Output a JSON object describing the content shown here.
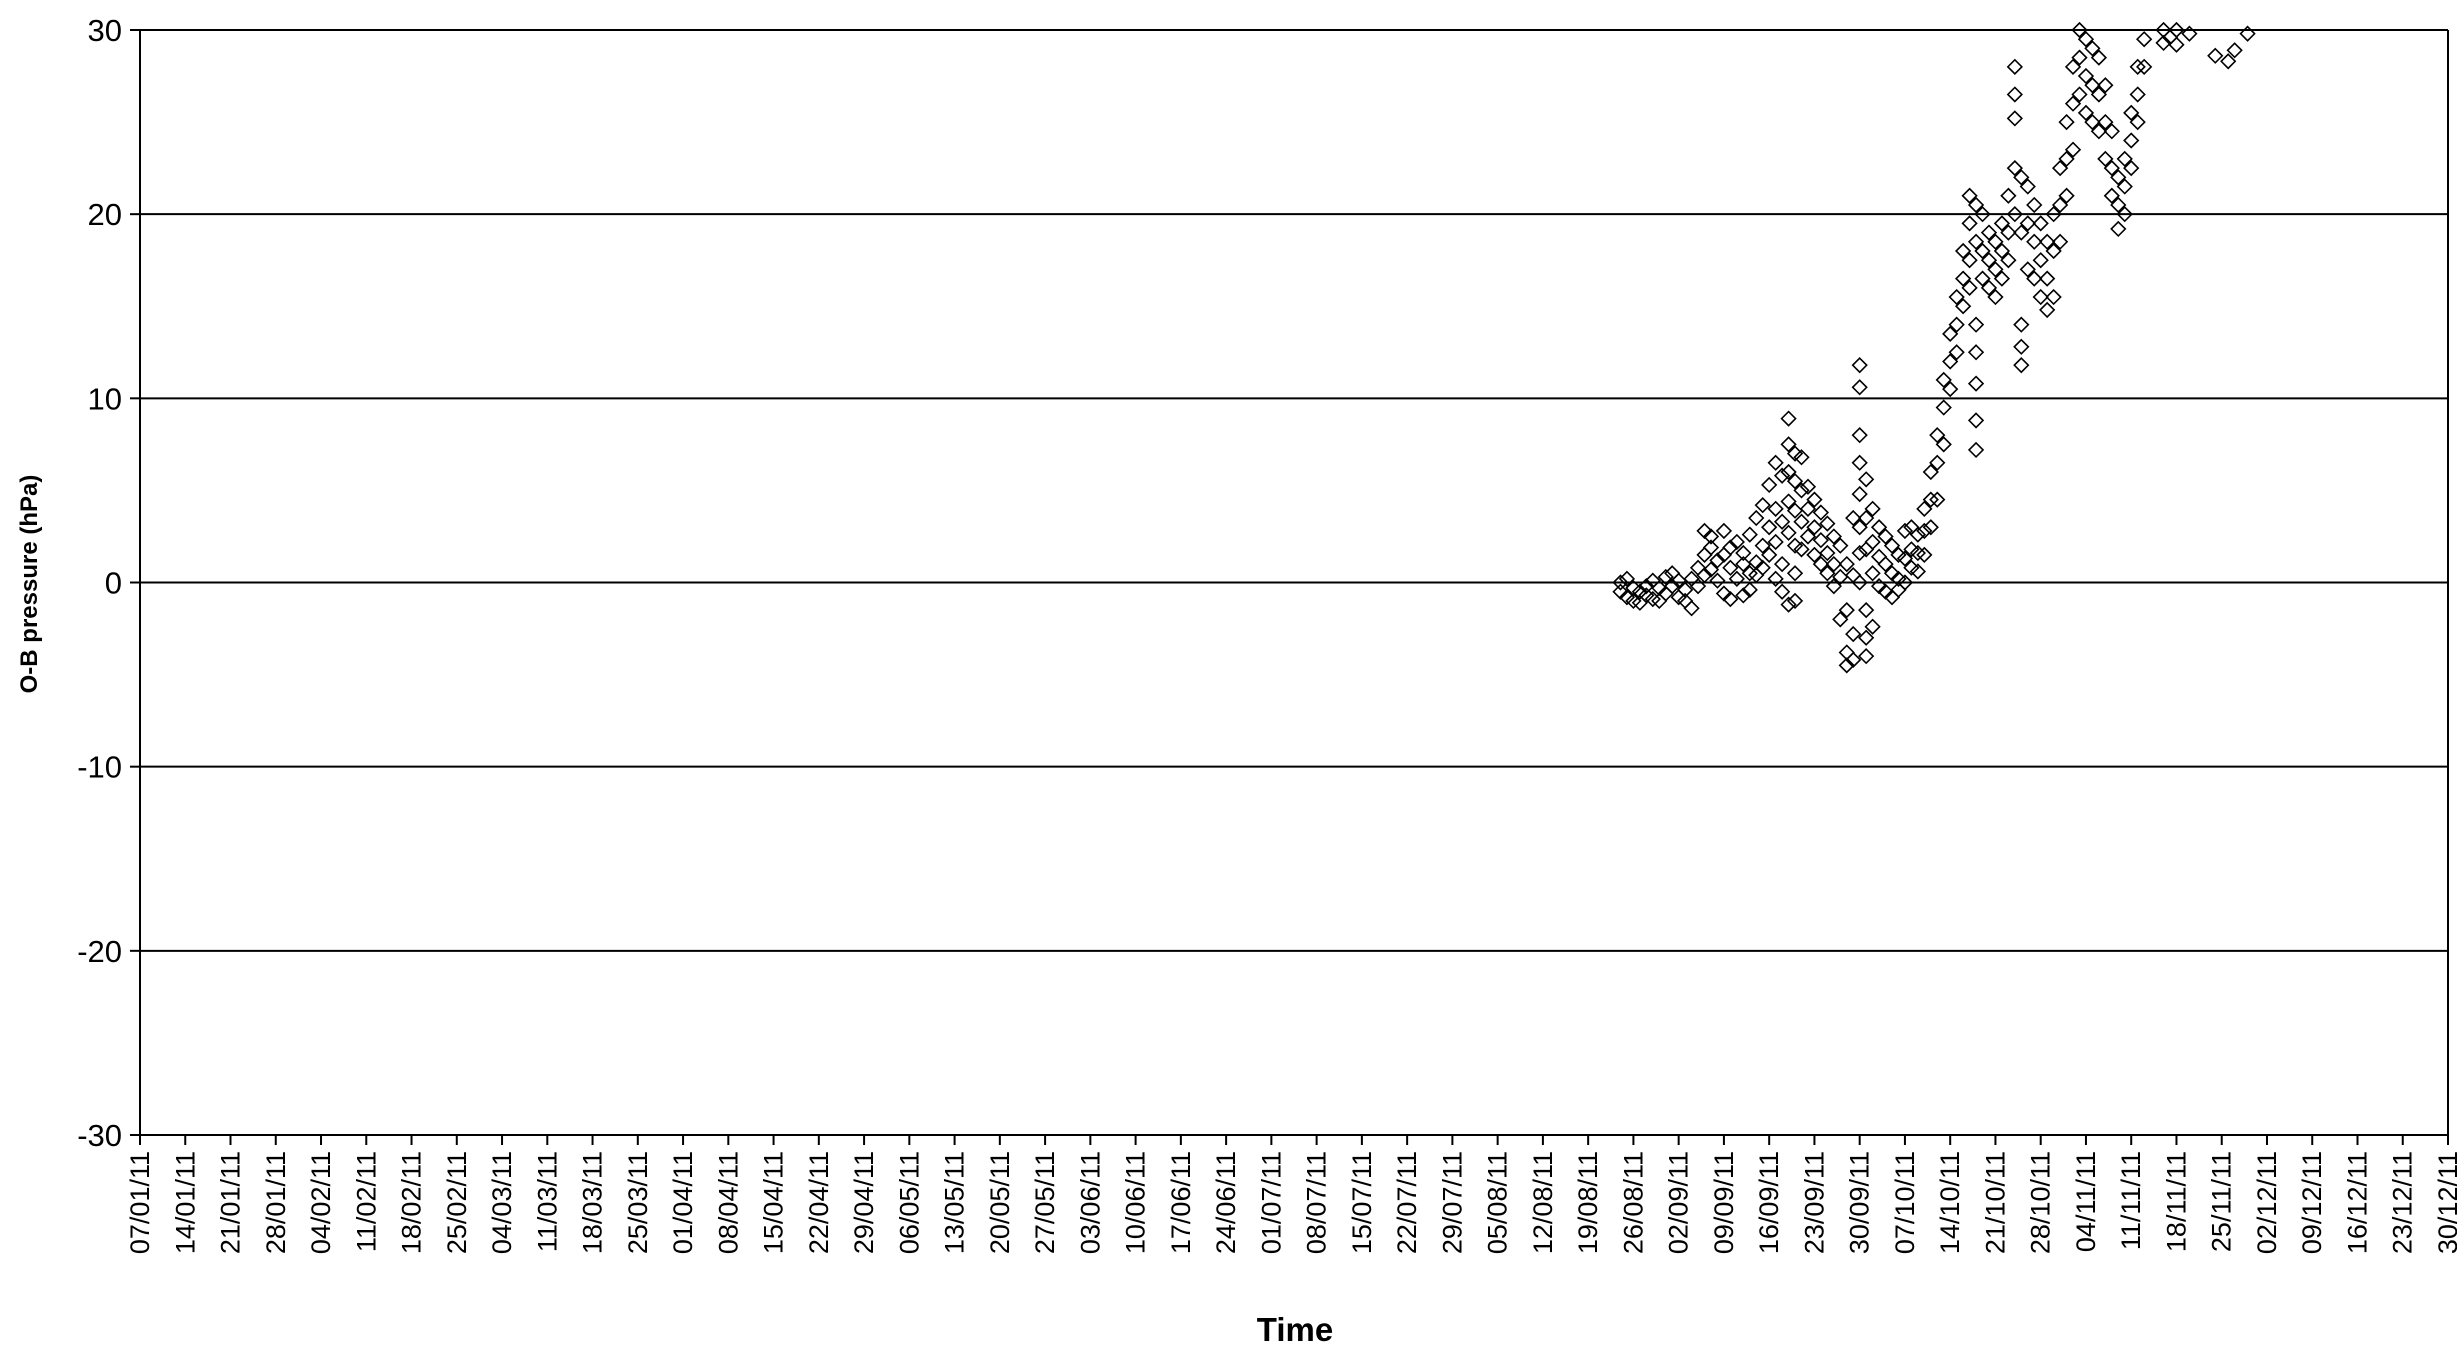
{
  "chart_data": {
    "type": "scatter",
    "title": "",
    "xlabel": "Time",
    "ylabel": "O-B pressure (hPa)",
    "ylim": [
      -30,
      30
    ],
    "yticks": [
      30,
      20,
      10,
      0,
      -10,
      -20,
      -30
    ],
    "xlim": [
      "07/01/11",
      "30/12/11"
    ],
    "xtick_labels": [
      "07/01/11",
      "14/01/11",
      "21/01/11",
      "28/01/11",
      "04/02/11",
      "11/02/11",
      "18/02/11",
      "25/02/11",
      "04/03/11",
      "11/03/11",
      "18/03/11",
      "25/03/11",
      "01/04/11",
      "08/04/11",
      "15/04/11",
      "22/04/11",
      "29/04/11",
      "06/05/11",
      "13/05/11",
      "20/05/11",
      "27/05/11",
      "03/06/11",
      "10/06/11",
      "17/06/11",
      "24/06/11",
      "01/07/11",
      "08/07/11",
      "15/07/11",
      "22/07/11",
      "29/07/11",
      "05/08/11",
      "12/08/11",
      "19/08/11",
      "26/08/11",
      "02/09/11",
      "09/09/11",
      "16/09/11",
      "23/09/11",
      "30/09/11",
      "07/10/11",
      "14/10/11",
      "21/10/11",
      "28/10/11",
      "04/11/11",
      "11/11/11",
      "18/11/11",
      "25/11/11",
      "02/12/11",
      "09/12/11",
      "16/12/11",
      "23/12/11",
      "30/12/11"
    ],
    "grid": "horizontal",
    "legend": "none",
    "marker": "diamond-open",
    "marker_color": "#000000",
    "series": [
      {
        "points": [
          [
            "24/08/11",
            0
          ],
          [
            "24/08/11",
            -0.5
          ],
          [
            "25/08/11",
            -0.8
          ],
          [
            "25/08/11",
            0.2
          ],
          [
            "26/08/11",
            -1.0
          ],
          [
            "26/08/11",
            -0.3
          ],
          [
            "27/08/11",
            -0.5
          ],
          [
            "27/08/11",
            -1.1
          ],
          [
            "28/08/11",
            -0.2
          ],
          [
            "28/08/11",
            -0.7
          ],
          [
            "29/08/11",
            0.1
          ],
          [
            "29/08/11",
            -0.9
          ],
          [
            "30/08/11",
            -0.3
          ],
          [
            "30/08/11",
            -1.0
          ],
          [
            "31/08/11",
            0.3
          ],
          [
            "31/08/11",
            -0.6
          ],
          [
            "01/09/11",
            0.5
          ],
          [
            "01/09/11",
            -0.2
          ],
          [
            "02/09/11",
            0.1
          ],
          [
            "02/09/11",
            -0.8
          ],
          [
            "03/09/11",
            -1.0
          ],
          [
            "03/09/11",
            -0.4
          ],
          [
            "04/09/11",
            -1.4
          ],
          [
            "04/09/11",
            0.2
          ],
          [
            "05/09/11",
            0.8
          ],
          [
            "05/09/11",
            -0.2
          ],
          [
            "06/09/11",
            1.5
          ],
          [
            "06/09/11",
            2.8
          ],
          [
            "06/09/11",
            0.4
          ],
          [
            "07/09/11",
            1.9
          ],
          [
            "07/09/11",
            0.7
          ],
          [
            "07/09/11",
            2.5
          ],
          [
            "08/09/11",
            1.2
          ],
          [
            "08/09/11",
            0.1
          ],
          [
            "09/09/11",
            2.8
          ],
          [
            "09/09/11",
            1.5
          ],
          [
            "09/09/11",
            -0.6
          ],
          [
            "10/09/11",
            0.8
          ],
          [
            "10/09/11",
            -0.9
          ],
          [
            "10/09/11",
            1.9
          ],
          [
            "11/09/11",
            2.2
          ],
          [
            "11/09/11",
            0.2
          ],
          [
            "12/09/11",
            1.0
          ],
          [
            "12/09/11",
            -0.7
          ],
          [
            "12/09/11",
            1.6
          ],
          [
            "13/09/11",
            0.5
          ],
          [
            "13/09/11",
            -0.4
          ],
          [
            "13/09/11",
            2.6
          ],
          [
            "14/09/11",
            1.1
          ],
          [
            "14/09/11",
            0.4
          ],
          [
            "14/09/11",
            3.5
          ],
          [
            "15/09/11",
            2.0
          ],
          [
            "15/09/11",
            0.8
          ],
          [
            "15/09/11",
            4.2
          ],
          [
            "16/09/11",
            3.0
          ],
          [
            "16/09/11",
            1.5
          ],
          [
            "16/09/11",
            5.3
          ],
          [
            "17/09/11",
            6.5
          ],
          [
            "17/09/11",
            4.0
          ],
          [
            "17/09/11",
            2.2
          ],
          [
            "17/09/11",
            0.2
          ],
          [
            "18/09/11",
            5.8
          ],
          [
            "18/09/11",
            3.3
          ],
          [
            "18/09/11",
            1.0
          ],
          [
            "18/09/11",
            -0.5
          ],
          [
            "19/09/11",
            7.5
          ],
          [
            "19/09/11",
            8.9
          ],
          [
            "19/09/11",
            6.0
          ],
          [
            "19/09/11",
            4.4
          ],
          [
            "19/09/11",
            2.7
          ],
          [
            "19/09/11",
            -1.2
          ],
          [
            "20/09/11",
            7.0
          ],
          [
            "20/09/11",
            5.5
          ],
          [
            "20/09/11",
            3.9
          ],
          [
            "20/09/11",
            2.0
          ],
          [
            "20/09/11",
            0.5
          ],
          [
            "20/09/11",
            -1.0
          ],
          [
            "21/09/11",
            6.8
          ],
          [
            "21/09/11",
            5.0
          ],
          [
            "21/09/11",
            3.3
          ],
          [
            "21/09/11",
            1.8
          ],
          [
            "22/09/11",
            5.2
          ],
          [
            "22/09/11",
            4.0
          ],
          [
            "22/09/11",
            2.5
          ],
          [
            "23/09/11",
            4.5
          ],
          [
            "23/09/11",
            3.0
          ],
          [
            "23/09/11",
            1.5
          ],
          [
            "24/09/11",
            3.8
          ],
          [
            "24/09/11",
            2.3
          ],
          [
            "24/09/11",
            1.0
          ],
          [
            "25/09/11",
            3.2
          ],
          [
            "25/09/11",
            1.6
          ],
          [
            "25/09/11",
            0.5
          ],
          [
            "26/09/11",
            2.5
          ],
          [
            "26/09/11",
            1.0
          ],
          [
            "26/09/11",
            -0.2
          ],
          [
            "27/09/11",
            2.0
          ],
          [
            "27/09/11",
            0.3
          ],
          [
            "27/09/11",
            -2.0
          ],
          [
            "28/09/11",
            1.0
          ],
          [
            "28/09/11",
            -1.5
          ],
          [
            "28/09/11",
            -3.8
          ],
          [
            "28/09/11",
            -4.5
          ],
          [
            "29/09/11",
            0.4
          ],
          [
            "29/09/11",
            -2.8
          ],
          [
            "29/09/11",
            -4.2
          ],
          [
            "29/09/11",
            3.5
          ],
          [
            "30/09/11",
            11.8
          ],
          [
            "30/09/11",
            10.6
          ],
          [
            "30/09/11",
            8.0
          ],
          [
            "30/09/11",
            6.5
          ],
          [
            "30/09/11",
            4.8
          ],
          [
            "30/09/11",
            3.0
          ],
          [
            "30/09/11",
            1.6
          ],
          [
            "30/09/11",
            0.0
          ],
          [
            "01/10/11",
            5.6
          ],
          [
            "01/10/11",
            3.5
          ],
          [
            "01/10/11",
            1.8
          ],
          [
            "01/10/11",
            -1.5
          ],
          [
            "01/10/11",
            -3.0
          ],
          [
            "01/10/11",
            -4.0
          ],
          [
            "02/10/11",
            4.0
          ],
          [
            "02/10/11",
            2.2
          ],
          [
            "02/10/11",
            0.5
          ],
          [
            "02/10/11",
            -2.4
          ],
          [
            "03/10/11",
            3.0
          ],
          [
            "03/10/11",
            1.4
          ],
          [
            "03/10/11",
            -0.2
          ],
          [
            "04/10/11",
            2.5
          ],
          [
            "04/10/11",
            1.0
          ],
          [
            "04/10/11",
            -0.5
          ],
          [
            "05/10/11",
            2.0
          ],
          [
            "05/10/11",
            0.5
          ],
          [
            "05/10/11",
            -0.8
          ],
          [
            "06/10/11",
            1.5
          ],
          [
            "06/10/11",
            0.2
          ],
          [
            "06/10/11",
            -0.4
          ],
          [
            "07/10/11",
            2.8
          ],
          [
            "07/10/11",
            1.3
          ],
          [
            "07/10/11",
            0.0
          ],
          [
            "08/10/11",
            3.0
          ],
          [
            "08/10/11",
            1.8
          ],
          [
            "08/10/11",
            0.8
          ],
          [
            "09/10/11",
            2.6
          ],
          [
            "09/10/11",
            1.6
          ],
          [
            "09/10/11",
            0.6
          ],
          [
            "10/10/11",
            4.0
          ],
          [
            "10/10/11",
            2.8
          ],
          [
            "10/10/11",
            1.5
          ],
          [
            "11/10/11",
            6.0
          ],
          [
            "11/10/11",
            4.5
          ],
          [
            "11/10/11",
            3.0
          ],
          [
            "12/10/11",
            8.0
          ],
          [
            "12/10/11",
            6.5
          ],
          [
            "12/10/11",
            4.5
          ],
          [
            "13/10/11",
            11.0
          ],
          [
            "13/10/11",
            9.5
          ],
          [
            "13/10/11",
            7.5
          ],
          [
            "14/10/11",
            13.5
          ],
          [
            "14/10/11",
            12.0
          ],
          [
            "14/10/11",
            10.5
          ],
          [
            "15/10/11",
            15.5
          ],
          [
            "15/10/11",
            14.0
          ],
          [
            "15/10/11",
            12.5
          ],
          [
            "16/10/11",
            18.0
          ],
          [
            "16/10/11",
            16.5
          ],
          [
            "16/10/11",
            15.0
          ],
          [
            "17/10/11",
            21.0
          ],
          [
            "17/10/11",
            19.5
          ],
          [
            "17/10/11",
            17.5
          ],
          [
            "17/10/11",
            16.0
          ],
          [
            "18/10/11",
            20.5
          ],
          [
            "18/10/11",
            18.5
          ],
          [
            "18/10/11",
            14.0
          ],
          [
            "18/10/11",
            12.5
          ],
          [
            "18/10/11",
            10.8
          ],
          [
            "18/10/11",
            8.8
          ],
          [
            "18/10/11",
            7.2
          ],
          [
            "19/10/11",
            20.0
          ],
          [
            "19/10/11",
            18.0
          ],
          [
            "19/10/11",
            16.5
          ],
          [
            "20/10/11",
            19.0
          ],
          [
            "20/10/11",
            17.5
          ],
          [
            "20/10/11",
            16.0
          ],
          [
            "21/10/11",
            18.5
          ],
          [
            "21/10/11",
            17.0
          ],
          [
            "21/10/11",
            15.5
          ],
          [
            "22/10/11",
            19.5
          ],
          [
            "22/10/11",
            18.0
          ],
          [
            "22/10/11",
            16.5
          ],
          [
            "23/10/11",
            21.0
          ],
          [
            "23/10/11",
            19.0
          ],
          [
            "23/10/11",
            17.5
          ],
          [
            "24/10/11",
            26.5
          ],
          [
            "24/10/11",
            28.0
          ],
          [
            "24/10/11",
            25.2
          ],
          [
            "24/10/11",
            22.5
          ],
          [
            "24/10/11",
            20.0
          ],
          [
            "25/10/11",
            22.0
          ],
          [
            "25/10/11",
            19.0
          ],
          [
            "25/10/11",
            14.0
          ],
          [
            "25/10/11",
            12.8
          ],
          [
            "25/10/11",
            11.8
          ],
          [
            "26/10/11",
            21.5
          ],
          [
            "26/10/11",
            19.5
          ],
          [
            "26/10/11",
            17.0
          ],
          [
            "27/10/11",
            20.5
          ],
          [
            "27/10/11",
            18.5
          ],
          [
            "27/10/11",
            16.5
          ],
          [
            "28/10/11",
            19.5
          ],
          [
            "28/10/11",
            17.5
          ],
          [
            "28/10/11",
            15.5
          ],
          [
            "29/10/11",
            18.5
          ],
          [
            "29/10/11",
            16.5
          ],
          [
            "29/10/11",
            14.8
          ],
          [
            "30/10/11",
            20.0
          ],
          [
            "30/10/11",
            18.0
          ],
          [
            "30/10/11",
            15.5
          ],
          [
            "31/10/11",
            22.5
          ],
          [
            "31/10/11",
            20.5
          ],
          [
            "31/10/11",
            18.5
          ],
          [
            "01/11/11",
            25.0
          ],
          [
            "01/11/11",
            23.0
          ],
          [
            "01/11/11",
            21.0
          ],
          [
            "02/11/11",
            28.0
          ],
          [
            "02/11/11",
            26.0
          ],
          [
            "02/11/11",
            23.5
          ],
          [
            "03/11/11",
            30.0
          ],
          [
            "03/11/11",
            28.5
          ],
          [
            "03/11/11",
            26.5
          ],
          [
            "04/11/11",
            29.5
          ],
          [
            "04/11/11",
            27.5
          ],
          [
            "04/11/11",
            25.5
          ],
          [
            "05/11/11",
            29.0
          ],
          [
            "05/11/11",
            27.0
          ],
          [
            "05/11/11",
            25.0
          ],
          [
            "06/11/11",
            28.5
          ],
          [
            "06/11/11",
            26.5
          ],
          [
            "06/11/11",
            24.5
          ],
          [
            "07/11/11",
            27.0
          ],
          [
            "07/11/11",
            25.0
          ],
          [
            "07/11/11",
            23.0
          ],
          [
            "08/11/11",
            24.5
          ],
          [
            "08/11/11",
            22.5
          ],
          [
            "08/11/11",
            21.0
          ],
          [
            "09/11/11",
            22.0
          ],
          [
            "09/11/11",
            20.5
          ],
          [
            "09/11/11",
            19.2
          ],
          [
            "10/11/11",
            23.0
          ],
          [
            "10/11/11",
            21.5
          ],
          [
            "10/11/11",
            20.0
          ],
          [
            "11/11/11",
            25.5
          ],
          [
            "11/11/11",
            24.0
          ],
          [
            "11/11/11",
            22.5
          ],
          [
            "12/11/11",
            28.0
          ],
          [
            "12/11/11",
            26.5
          ],
          [
            "12/11/11",
            25.0
          ],
          [
            "13/11/11",
            29.5
          ],
          [
            "13/11/11",
            28.0
          ],
          [
            "16/11/11",
            30.0
          ],
          [
            "16/11/11",
            29.3
          ],
          [
            "17/11/11",
            29.6
          ],
          [
            "18/11/11",
            30.0
          ],
          [
            "18/11/11",
            29.2
          ],
          [
            "20/11/11",
            29.8
          ],
          [
            "24/11/11",
            28.6
          ],
          [
            "26/11/11",
            28.3
          ],
          [
            "27/11/11",
            28.9
          ],
          [
            "29/11/11",
            29.8
          ]
        ]
      }
    ]
  }
}
